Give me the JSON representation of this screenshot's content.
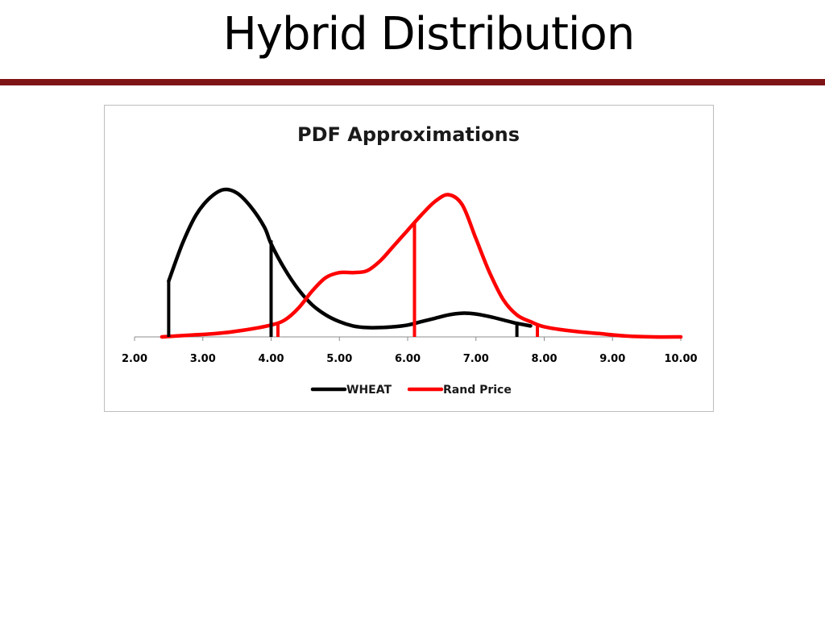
{
  "slide": {
    "title": "Hybrid Distribution",
    "rule_color": "#7f1416"
  },
  "chart_data": {
    "type": "line",
    "title": "PDF Approximations",
    "xlabel": "",
    "ylabel": "",
    "xlim": [
      2.0,
      10.0
    ],
    "ylim": [
      0,
      1.0
    ],
    "x_ticks": [
      "2.00",
      "3.00",
      "4.00",
      "5.00",
      "6.00",
      "7.00",
      "8.00",
      "9.00",
      "10.00"
    ],
    "grid": false,
    "legend_position": "bottom",
    "series": [
      {
        "name": "WHEAT",
        "color": "#000000",
        "x": [
          2.5,
          2.7,
          2.9,
          3.1,
          3.3,
          3.5,
          3.7,
          3.9,
          4.0,
          4.2,
          4.4,
          4.6,
          4.8,
          5.0,
          5.2,
          5.4,
          5.6,
          5.8,
          6.0,
          6.2,
          6.4,
          6.6,
          6.8,
          7.0,
          7.2,
          7.4,
          7.6,
          7.8
        ],
        "y": [
          0.33,
          0.55,
          0.72,
          0.82,
          0.87,
          0.85,
          0.77,
          0.65,
          0.55,
          0.4,
          0.28,
          0.19,
          0.13,
          0.09,
          0.065,
          0.055,
          0.055,
          0.06,
          0.07,
          0.09,
          0.11,
          0.13,
          0.14,
          0.135,
          0.12,
          0.1,
          0.08,
          0.065
        ]
      },
      {
        "name": "Rand Price",
        "color": "#ff0000",
        "x": [
          2.4,
          2.8,
          3.2,
          3.6,
          4.0,
          4.2,
          4.4,
          4.6,
          4.8,
          5.0,
          5.2,
          5.4,
          5.6,
          5.8,
          6.0,
          6.2,
          6.4,
          6.6,
          6.8,
          7.0,
          7.2,
          7.4,
          7.6,
          7.8,
          8.0,
          8.4,
          8.8,
          9.2,
          9.6,
          10.0
        ],
        "y": [
          0.0,
          0.01,
          0.02,
          0.04,
          0.07,
          0.1,
          0.17,
          0.27,
          0.35,
          0.38,
          0.38,
          0.39,
          0.45,
          0.54,
          0.63,
          0.72,
          0.8,
          0.84,
          0.78,
          0.58,
          0.38,
          0.22,
          0.13,
          0.09,
          0.06,
          0.035,
          0.02,
          0.005,
          0.0,
          0.0
        ]
      }
    ],
    "markers": [
      {
        "series": "WHEAT",
        "x": 2.5,
        "y": 0.33
      },
      {
        "series": "WHEAT",
        "x": 4.0,
        "y": 0.57
      },
      {
        "series": "WHEAT",
        "x": 7.6,
        "y": 0.08
      },
      {
        "series": "Rand Price",
        "x": 4.1,
        "y": 0.09
      },
      {
        "series": "Rand Price",
        "x": 6.1,
        "y": 0.68
      },
      {
        "series": "Rand Price",
        "x": 7.9,
        "y": 0.075
      }
    ]
  }
}
